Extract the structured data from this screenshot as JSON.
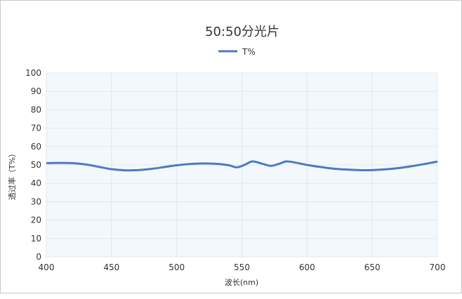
{
  "chart_data": {
    "type": "line",
    "title": "50:50分光片",
    "xlabel": "波长(nm)",
    "ylabel": "透过率（T%）",
    "xlim": [
      400,
      700
    ],
    "ylim": [
      0,
      100
    ],
    "xticks": [
      400,
      450,
      500,
      550,
      600,
      650,
      700
    ],
    "yticks": [
      0,
      10,
      20,
      30,
      40,
      50,
      60,
      70,
      80,
      90,
      100
    ],
    "grid": true,
    "legend": "top-center",
    "series": [
      {
        "name": "T%",
        "color": "#4a7cc0",
        "x": [
          400,
          410,
          420,
          430,
          440,
          450,
          460,
          470,
          480,
          490,
          500,
          510,
          520,
          530,
          540,
          546,
          552,
          558,
          565,
          572,
          578,
          584,
          590,
          600,
          610,
          620,
          630,
          640,
          650,
          660,
          670,
          680,
          690,
          700
        ],
        "y": [
          51.0,
          51.1,
          51.0,
          50.3,
          49.0,
          47.7,
          47.1,
          47.2,
          47.8,
          48.8,
          49.8,
          50.5,
          50.8,
          50.6,
          49.8,
          48.7,
          50.0,
          51.9,
          50.8,
          49.5,
          50.5,
          51.9,
          51.4,
          50.0,
          48.9,
          48.0,
          47.5,
          47.2,
          47.2,
          47.6,
          48.3,
          49.3,
          50.5,
          51.8
        ]
      }
    ],
    "plot_background": "#f3f8fc"
  }
}
